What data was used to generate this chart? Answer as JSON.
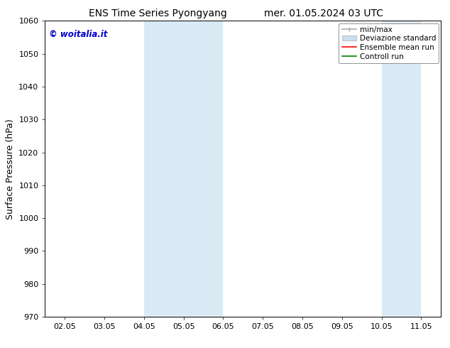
{
  "title_left": "ENS Time Series Pyongyang",
  "title_right": "mer. 01.05.2024 03 UTC",
  "ylabel": "Surface Pressure (hPa)",
  "ylim": [
    970,
    1060
  ],
  "yticks": [
    970,
    980,
    990,
    1000,
    1010,
    1020,
    1030,
    1040,
    1050,
    1060
  ],
  "xtick_labels": [
    "02.05",
    "03.05",
    "04.05",
    "05.05",
    "06.05",
    "07.05",
    "08.05",
    "09.05",
    "10.05",
    "11.05"
  ],
  "xtick_positions": [
    0,
    1,
    2,
    3,
    4,
    5,
    6,
    7,
    8,
    9
  ],
  "xlim": [
    -0.5,
    9.5
  ],
  "shaded_regions": [
    {
      "xmin": 2.0,
      "xmax": 3.0,
      "color": "#daeaf5"
    },
    {
      "xmin": 3.0,
      "xmax": 4.0,
      "color": "#daeaf5"
    },
    {
      "xmin": 8.0,
      "xmax": 9.0,
      "color": "#daeaf5"
    }
  ],
  "watermark": "© woitalia.it",
  "watermark_color": "#0000cc",
  "legend_entries": [
    {
      "label": "min/max",
      "color": "#aaaaaa",
      "lw": 1.2,
      "style": "minmax"
    },
    {
      "label": "Deviazione standard",
      "color": "#c8dff0",
      "lw": 8,
      "style": "band"
    },
    {
      "label": "Ensemble mean run",
      "color": "red",
      "lw": 1.2,
      "style": "line"
    },
    {
      "label": "Controll run",
      "color": "green",
      "lw": 1.2,
      "style": "line"
    }
  ],
  "bg_color": "#ffffff",
  "spine_color": "#000000",
  "title_fontsize": 10,
  "tick_fontsize": 8,
  "ylabel_fontsize": 9,
  "watermark_fontsize": 8.5,
  "legend_fontsize": 7.5
}
